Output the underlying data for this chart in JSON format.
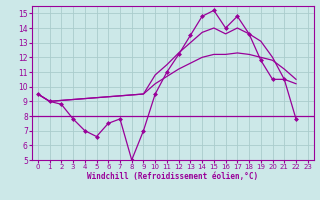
{
  "xlabel": "Windchill (Refroidissement éolien,°C)",
  "bg_color": "#cce8e8",
  "line_color": "#990099",
  "grid_color": "#aacccc",
  "xlim": [
    -0.5,
    23.5
  ],
  "ylim": [
    5,
    15.5
  ],
  "xticks": [
    0,
    1,
    2,
    3,
    4,
    5,
    6,
    7,
    8,
    9,
    10,
    11,
    12,
    13,
    14,
    15,
    16,
    17,
    18,
    19,
    20,
    21,
    22,
    23
  ],
  "yticks": [
    5,
    6,
    7,
    8,
    9,
    10,
    11,
    12,
    13,
    14,
    15
  ],
  "s1_x": [
    0,
    1,
    2,
    3,
    4,
    5,
    6,
    7,
    8,
    9,
    10,
    11,
    12,
    13,
    14,
    15,
    16,
    17,
    18,
    19,
    20,
    21,
    22
  ],
  "s1_y": [
    9.5,
    9.0,
    8.8,
    7.8,
    7.0,
    6.6,
    7.5,
    7.8,
    5.0,
    7.0,
    9.5,
    11.0,
    12.2,
    13.5,
    14.8,
    15.2,
    14.0,
    14.8,
    13.6,
    11.8,
    10.5,
    10.5,
    7.8
  ],
  "s2_x": [
    0,
    1,
    9,
    10,
    11,
    12,
    13,
    14,
    15,
    16,
    17,
    18,
    19,
    20,
    21,
    22
  ],
  "s2_y": [
    9.5,
    9.0,
    9.5,
    10.2,
    10.7,
    11.2,
    11.6,
    12.0,
    12.2,
    12.2,
    12.3,
    12.2,
    12.0,
    11.8,
    11.2,
    10.5
  ],
  "s3_x": [
    0,
    1,
    9,
    10,
    11,
    12,
    13,
    14,
    15,
    16,
    17,
    18,
    19,
    20,
    21,
    22
  ],
  "s3_y": [
    9.5,
    9.0,
    9.5,
    10.8,
    11.5,
    12.3,
    13.0,
    13.7,
    14.0,
    13.6,
    14.0,
    13.6,
    13.1,
    12.0,
    10.5,
    10.2
  ],
  "hline_y": 8.0
}
